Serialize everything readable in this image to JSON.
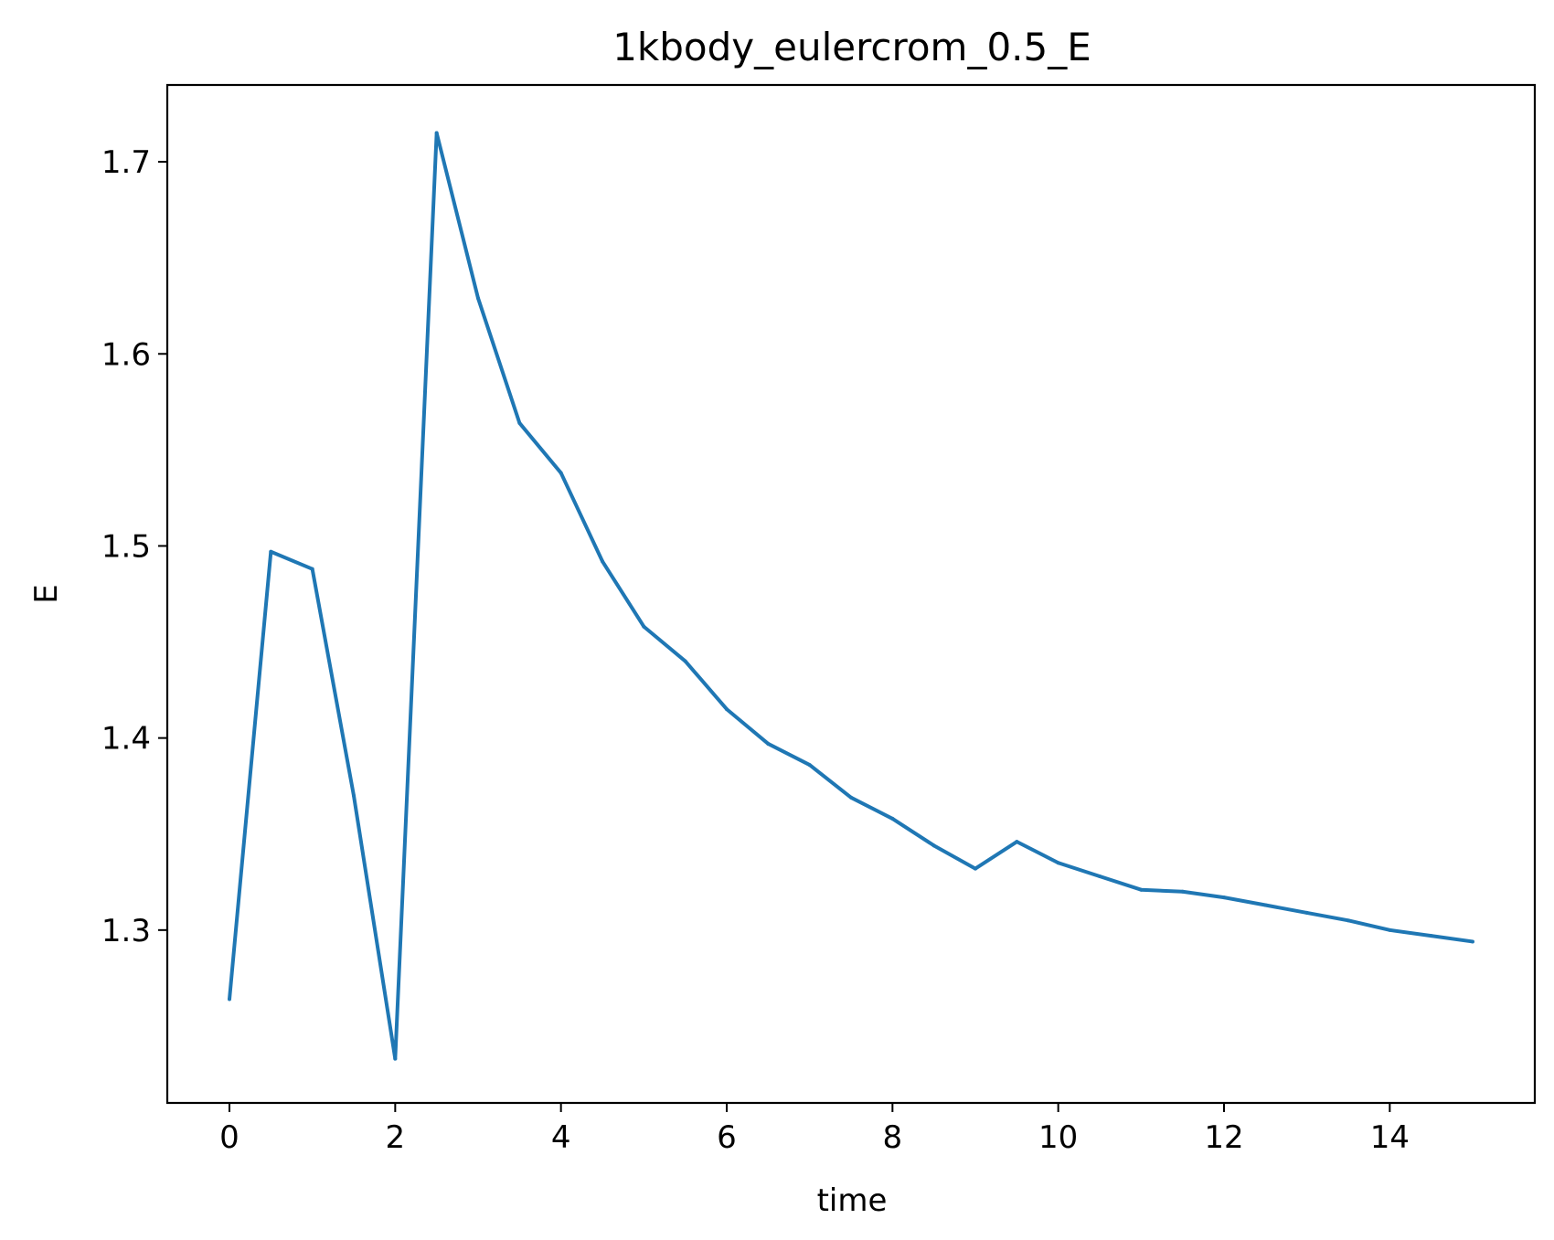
{
  "chart_data": {
    "type": "line",
    "title": "1kbody_eulercrom_0.5_E",
    "xlabel": "time",
    "ylabel": "E",
    "xlim": [
      -0.75,
      15.75
    ],
    "ylim": [
      1.21,
      1.74
    ],
    "x_ticks": [
      0,
      2,
      4,
      6,
      8,
      10,
      12,
      14
    ],
    "x_tick_labels": [
      "0",
      "2",
      "4",
      "6",
      "8",
      "10",
      "12",
      "14"
    ],
    "y_ticks": [
      1.3,
      1.4,
      1.5,
      1.6,
      1.7
    ],
    "y_tick_labels": [
      "1.3",
      "1.4",
      "1.5",
      "1.6",
      "1.7"
    ],
    "grid": false,
    "series": [
      {
        "color": "#1f77b4",
        "x": [
          0,
          0.5,
          1,
          1.5,
          2,
          2.5,
          3,
          3.5,
          4,
          4.5,
          5,
          5.5,
          6,
          6.5,
          7,
          7.5,
          8,
          8.5,
          9,
          9.5,
          10,
          10.5,
          11,
          11.5,
          12,
          12.5,
          13,
          13.5,
          14,
          14.5,
          15
        ],
        "y": [
          1.264,
          1.497,
          1.488,
          1.37,
          1.233,
          1.715,
          1.629,
          1.564,
          1.538,
          1.492,
          1.458,
          1.44,
          1.415,
          1.397,
          1.386,
          1.369,
          1.358,
          1.344,
          1.332,
          1.346,
          1.335,
          1.328,
          1.321,
          1.32,
          1.317,
          1.313,
          1.309,
          1.305,
          1.3,
          1.297,
          1.294
        ]
      }
    ]
  }
}
